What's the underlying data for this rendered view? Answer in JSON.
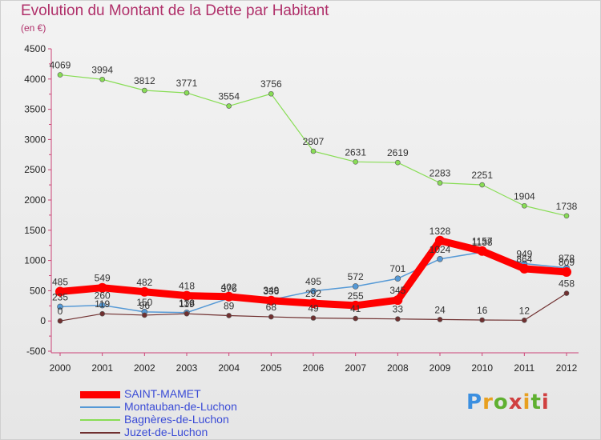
{
  "title": "Evolution du Montant de la Dette par Habitant",
  "subtitle": "(en €)",
  "logo": "Proxiti",
  "chart_data": {
    "type": "line",
    "x": [
      "2000",
      "2001",
      "2002",
      "2003",
      "2004",
      "2005",
      "2006",
      "2007",
      "2008",
      "2009",
      "2010",
      "2011",
      "2012"
    ],
    "ylim": [
      -500,
      4500
    ],
    "yticks": [
      -500,
      0,
      500,
      1000,
      1500,
      2000,
      2500,
      3000,
      3500,
      4000,
      4500
    ],
    "grid": false,
    "legend": "bottom-left",
    "series": [
      {
        "name": "SAINT-MAMET",
        "color": "#ff0000",
        "values": [
          485,
          549,
          482,
          418,
          402,
          336,
          292,
          255,
          345,
          1328,
          1157,
          864,
          809
        ]
      },
      {
        "name": "Montauban-de-Luchon",
        "color": "#5599d6",
        "values": [
          235,
          260,
          150,
          138,
          376,
          349,
          495,
          572,
          701,
          1024,
          1138,
          949,
          878
        ]
      },
      {
        "name": "Bagnères-de-Luchon",
        "color": "#88dd55",
        "values": [
          4069,
          3994,
          3812,
          3771,
          3554,
          3756,
          2807,
          2631,
          2619,
          2283,
          2251,
          1904,
          1738
        ]
      },
      {
        "name": "Juzet-de-Luchon",
        "color": "#703030",
        "values": [
          0,
          119,
          96,
          119,
          89,
          68,
          49,
          41,
          33,
          24,
          16,
          12,
          458
        ]
      }
    ]
  }
}
